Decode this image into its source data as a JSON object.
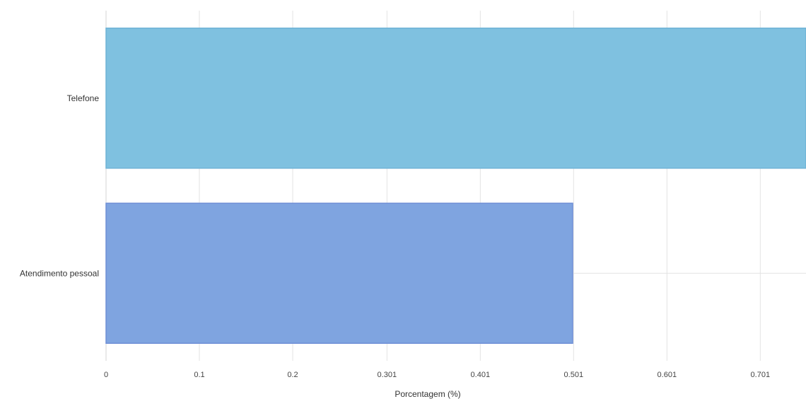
{
  "chart_data": {
    "type": "bar",
    "orientation": "horizontal",
    "title": "",
    "xlabel": "Porcentagem (%)",
    "ylabel": "",
    "categories": [
      "Telefone",
      "Atendimento pessoal"
    ],
    "values": [
      0.75,
      0.5
    ],
    "colors": [
      "#7fc1e0",
      "#7fa4e0"
    ],
    "border_colors": [
      "#6fb3d6",
      "#6f8fd6"
    ],
    "xlim": [
      0,
      0.75
    ],
    "x_ticks": [
      0,
      0.1,
      0.2,
      0.301,
      0.401,
      0.501,
      0.601,
      0.701
    ],
    "x_tick_labels": [
      "0",
      "0.1",
      "0.2",
      "0.301",
      "0.401",
      "0.501",
      "0.601",
      "0.701"
    ],
    "grid": true,
    "legend": "none"
  }
}
